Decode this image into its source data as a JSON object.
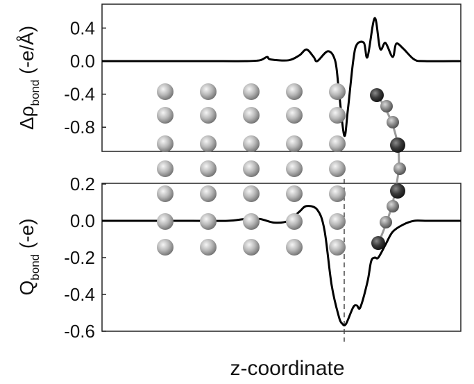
{
  "chart_data": [
    {
      "type": "line",
      "ylabel": {
        "prefix": "Δρ",
        "subscript": "bond",
        "suffix": " (-e/Å)"
      },
      "ylim": [
        -1.1,
        0.65
      ],
      "xlim": [
        0,
        100
      ],
      "yticks": [
        "0.4",
        "0.0",
        "-0.4",
        "-0.8"
      ],
      "ytick_values": [
        0.4,
        0.0,
        -0.4,
        -0.8
      ],
      "grid": false,
      "series": [
        {
          "x": [
            0,
            10,
            20,
            30,
            40,
            44,
            46,
            47,
            52,
            55,
            57,
            59,
            60,
            63,
            65,
            66,
            67.5,
            68.5,
            70,
            71,
            73,
            74,
            76,
            77.5,
            79,
            81,
            82,
            84,
            87,
            90,
            100
          ],
          "values": [
            0,
            0,
            0,
            0,
            0,
            0.01,
            0.05,
            0.02,
            0.01,
            0.07,
            0.14,
            0.05,
            0.0,
            0.12,
            0.0,
            -0.35,
            -0.9,
            -0.6,
            0.0,
            0.2,
            0.22,
            0.05,
            0.52,
            0.15,
            0.22,
            0.05,
            0.21,
            0.15,
            0.02,
            0,
            0
          ]
        }
      ]
    },
    {
      "type": "line",
      "ylabel": {
        "prefix": "Q",
        "subscript": "bond",
        "suffix": " (-e)"
      },
      "xlabel": "z-coordinate",
      "ylim": [
        -0.6,
        0.2
      ],
      "xlim": [
        0,
        100
      ],
      "yticks": [
        "0.2",
        "0.0",
        "-0.2",
        "-0.4",
        "-0.6"
      ],
      "ytick_values": [
        0.2,
        0.0,
        -0.2,
        -0.4,
        -0.6
      ],
      "grid": false,
      "marker_line_x": 67.5,
      "series": [
        {
          "x": [
            0,
            15,
            25,
            35,
            40,
            44,
            48,
            52,
            55,
            57,
            60,
            62,
            64,
            66,
            67,
            68,
            70,
            71,
            72,
            74,
            75,
            76,
            77,
            79,
            81,
            84,
            87,
            90,
            95,
            100
          ],
          "values": [
            0,
            0,
            0,
            0,
            0.01,
            0.01,
            -0.01,
            0.0,
            0.05,
            0.08,
            0.06,
            -0.05,
            -0.35,
            -0.52,
            -0.56,
            -0.56,
            -0.47,
            -0.46,
            -0.47,
            -0.33,
            -0.22,
            -0.2,
            -0.2,
            -0.13,
            -0.06,
            -0.02,
            0.0,
            0.0,
            0.0,
            0.0
          ]
        }
      ]
    }
  ]
}
